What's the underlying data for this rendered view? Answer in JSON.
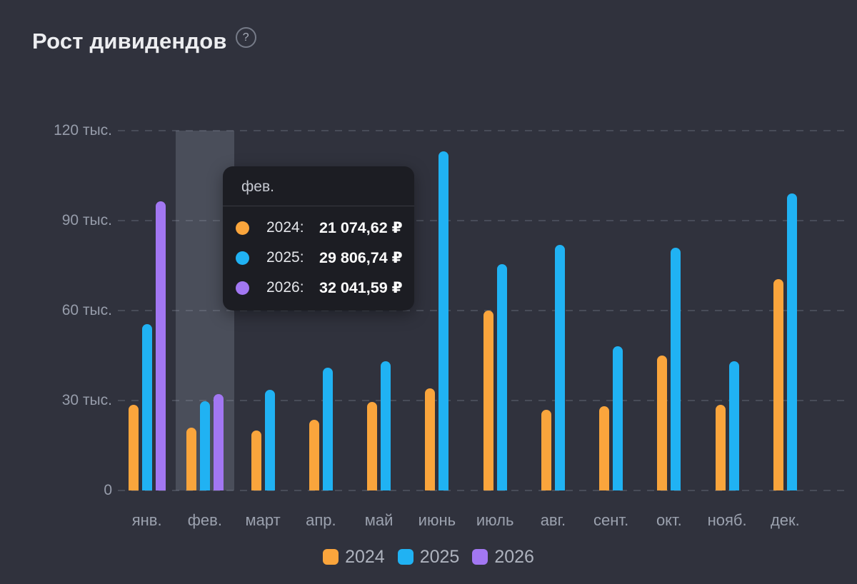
{
  "title": "Рост дивидендов",
  "help_glyph": "?",
  "colors": {
    "background": "#30323D",
    "grid": "#4B4F5B",
    "axis_text": "#979DAB",
    "title_text": "#ECEDF0",
    "highlight_band": "rgba(168,177,196,0.22)",
    "tooltip_bg": "#1C1D23",
    "series_2024": "#FAA53C",
    "series_2025": "#20B2F3",
    "series_2026": "#A277F2"
  },
  "chart_data": {
    "type": "bar",
    "title": "Рост дивидендов",
    "unit": "тыс. ₽",
    "ymax": 120,
    "ylim": [
      0,
      120
    ],
    "grid": "dashed-horizontal",
    "legend_position": "bottom",
    "y_ticks": [
      "120 тыс.",
      "90 тыс.",
      "60 тыс.",
      "30 тыс.",
      "0"
    ],
    "categories": [
      "янв.",
      "фев.",
      "март",
      "апр.",
      "май",
      "июнь",
      "июль",
      "авг.",
      "сент.",
      "окт.",
      "нояб.",
      "дек."
    ],
    "series": [
      {
        "name": "2024",
        "color": "#FAA53C",
        "values": [
          28.5,
          21.07,
          20,
          23.5,
          29.5,
          34,
          60,
          27,
          28,
          45,
          28.5,
          70.5
        ]
      },
      {
        "name": "2025",
        "color": "#20B2F3",
        "values": [
          55.5,
          29.81,
          33.5,
          41,
          43,
          113,
          75.5,
          82,
          48,
          81,
          43,
          99
        ]
      },
      {
        "name": "2026",
        "color": "#A277F2",
        "values": [
          96.5,
          32.04,
          null,
          null,
          null,
          null,
          null,
          null,
          null,
          null,
          null,
          null
        ]
      }
    ]
  },
  "tooltip": {
    "title": "фев.",
    "highlighted_category": "фев.",
    "rows": [
      {
        "series": "2024",
        "label": "2024:",
        "value": "21 074,62 ₽",
        "color": "#FAA53C"
      },
      {
        "series": "2025",
        "label": "2025:",
        "value": "29 806,74 ₽",
        "color": "#20B2F3"
      },
      {
        "series": "2026",
        "label": "2026:",
        "value": "32 041,59 ₽",
        "color": "#A277F2"
      }
    ]
  },
  "legend": {
    "items": [
      {
        "label": "2024",
        "color": "#FAA53C"
      },
      {
        "label": "2025",
        "color": "#20B2F3"
      },
      {
        "label": "2026",
        "color": "#A277F2"
      }
    ]
  }
}
